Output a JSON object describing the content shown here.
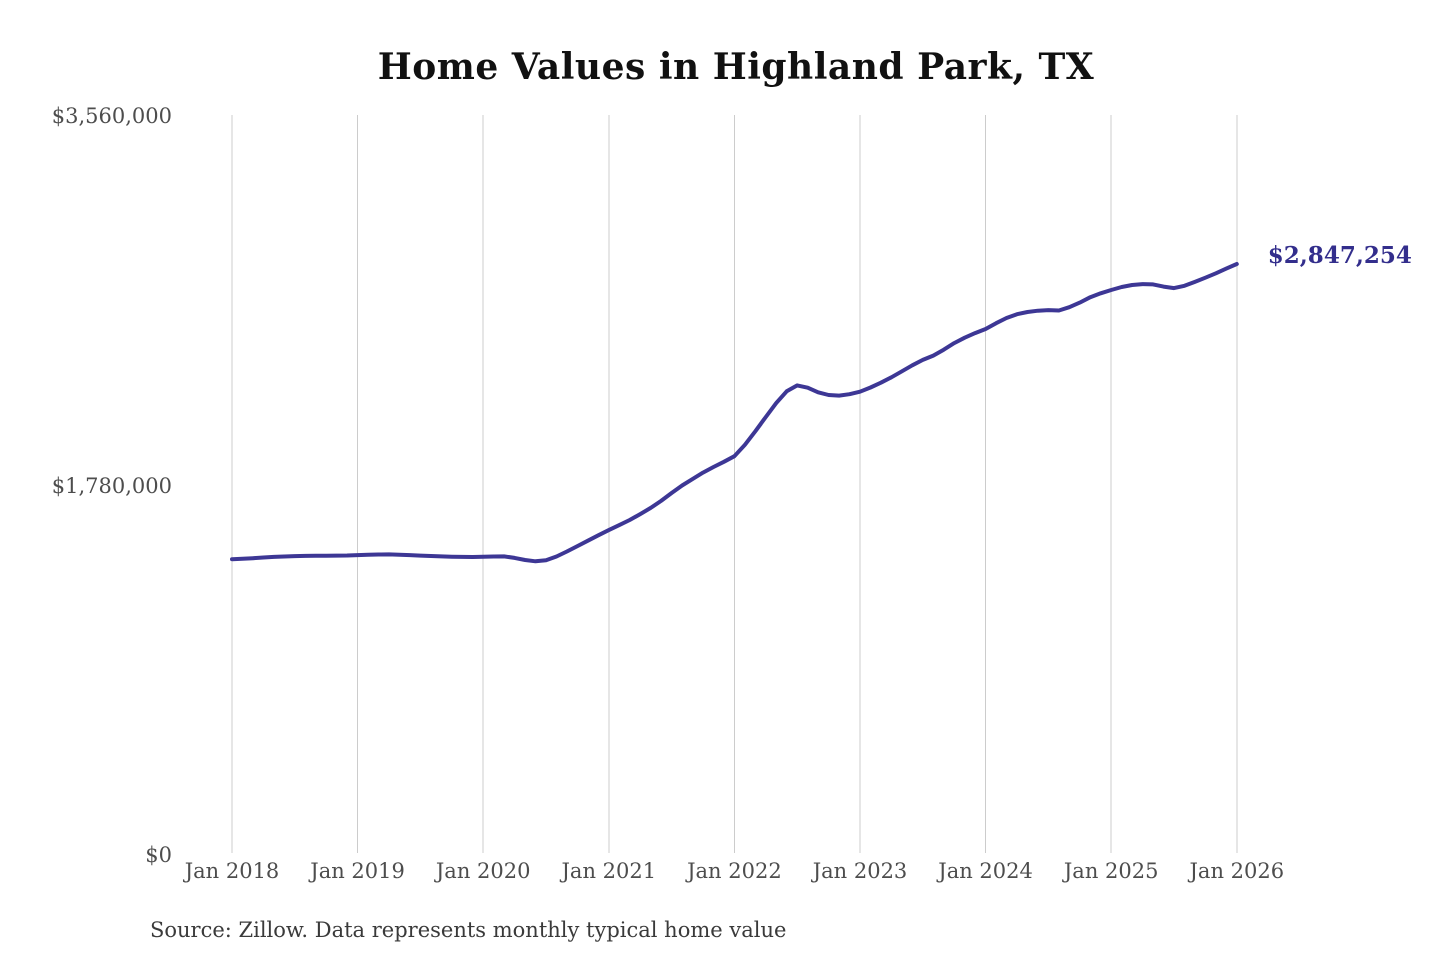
{
  "page": {
    "background": "#ffffff"
  },
  "footer": {
    "source_note": "Source: Zillow. Data represents monthly typical home value"
  },
  "chart_data": {
    "type": "line",
    "title": "Home Values in Highland Park, TX",
    "xlabel": "",
    "ylabel": "",
    "ylim": [
      0,
      3560000
    ],
    "grid": "vertical-only",
    "legend": "none",
    "line_color": "#3d3795",
    "end_label_color": "#332e8c",
    "grid_color": "#cccccc",
    "axis_text_color": "#4d4d4d",
    "title_color": "#111111",
    "end_label": "$2,847,254",
    "end_value": 2847254,
    "y_ticks": [
      {
        "value": 0,
        "label": "$0"
      },
      {
        "value": 1780000,
        "label": "$1,780,000"
      },
      {
        "value": 3560000,
        "label": "$3,560,000"
      }
    ],
    "x_ticks": [
      {
        "index": 0,
        "label": "Jan 2018"
      },
      {
        "index": 12,
        "label": "Jan 2019"
      },
      {
        "index": 24,
        "label": "Jan 2020"
      },
      {
        "index": 36,
        "label": "Jan 2021"
      },
      {
        "index": 48,
        "label": "Jan 2022"
      },
      {
        "index": 60,
        "label": "Jan 2023"
      },
      {
        "index": 72,
        "label": "Jan 2024"
      },
      {
        "index": 84,
        "label": "Jan 2025"
      },
      {
        "index": 96,
        "label": "Jan 2026"
      }
    ],
    "months": [
      "2018-01",
      "2018-02",
      "2018-03",
      "2018-04",
      "2018-05",
      "2018-06",
      "2018-07",
      "2018-08",
      "2018-09",
      "2018-10",
      "2018-11",
      "2018-12",
      "2019-01",
      "2019-02",
      "2019-03",
      "2019-04",
      "2019-05",
      "2019-06",
      "2019-07",
      "2019-08",
      "2019-09",
      "2019-10",
      "2019-11",
      "2019-12",
      "2020-01",
      "2020-02",
      "2020-03",
      "2020-04",
      "2020-05",
      "2020-06",
      "2020-07",
      "2020-08",
      "2020-09",
      "2020-10",
      "2020-11",
      "2020-12",
      "2021-01",
      "2021-02",
      "2021-03",
      "2021-04",
      "2021-05",
      "2021-06",
      "2021-07",
      "2021-08",
      "2021-09",
      "2021-10",
      "2021-11",
      "2021-12",
      "2022-01",
      "2022-02",
      "2022-03",
      "2022-04",
      "2022-05",
      "2022-06",
      "2022-07",
      "2022-08",
      "2022-09",
      "2022-10",
      "2022-11",
      "2022-12",
      "2023-01",
      "2023-02",
      "2023-03",
      "2023-04",
      "2023-05",
      "2023-06",
      "2023-07",
      "2023-08",
      "2023-09",
      "2023-10",
      "2023-11",
      "2023-12",
      "2024-01",
      "2024-02",
      "2024-03",
      "2024-04",
      "2024-05",
      "2024-06",
      "2024-07",
      "2024-08",
      "2024-09",
      "2024-10",
      "2024-11",
      "2024-12",
      "2025-01",
      "2025-02",
      "2025-03",
      "2025-04",
      "2025-05",
      "2025-06",
      "2025-07",
      "2025-08",
      "2025-09",
      "2025-10",
      "2025-11",
      "2025-12",
      "2026-01"
    ],
    "values": [
      1425000,
      1427000,
      1430000,
      1433000,
      1436000,
      1438000,
      1440000,
      1441000,
      1441500,
      1442000,
      1442500,
      1443000,
      1444500,
      1446000,
      1447500,
      1448000,
      1446500,
      1444500,
      1442500,
      1440500,
      1438500,
      1437000,
      1436000,
      1435500,
      1436500,
      1438000,
      1438500,
      1431000,
      1421000,
      1415000,
      1420000,
      1438000,
      1462000,
      1488000,
      1514000,
      1540000,
      1565000,
      1589000,
      1614000,
      1642000,
      1672000,
      1706000,
      1744000,
      1780000,
      1811000,
      1842000,
      1869000,
      1894000,
      1921000,
      1976000,
      2041000,
      2110000,
      2178000,
      2234000,
      2262000,
      2251000,
      2229000,
      2216000,
      2213000,
      2220000,
      2232000,
      2252000,
      2275000,
      2301000,
      2330000,
      2359000,
      2385000,
      2406000,
      2434000,
      2466000,
      2492000,
      2514000,
      2534000,
      2562000,
      2587000,
      2605000,
      2616000,
      2622000,
      2625000,
      2623000,
      2639000,
      2661000,
      2687000,
      2706000,
      2722000,
      2736000,
      2746000,
      2750000,
      2749000,
      2738000,
      2731000,
      2742000,
      2761000,
      2781000,
      2802000,
      2825000,
      2847254
    ]
  }
}
